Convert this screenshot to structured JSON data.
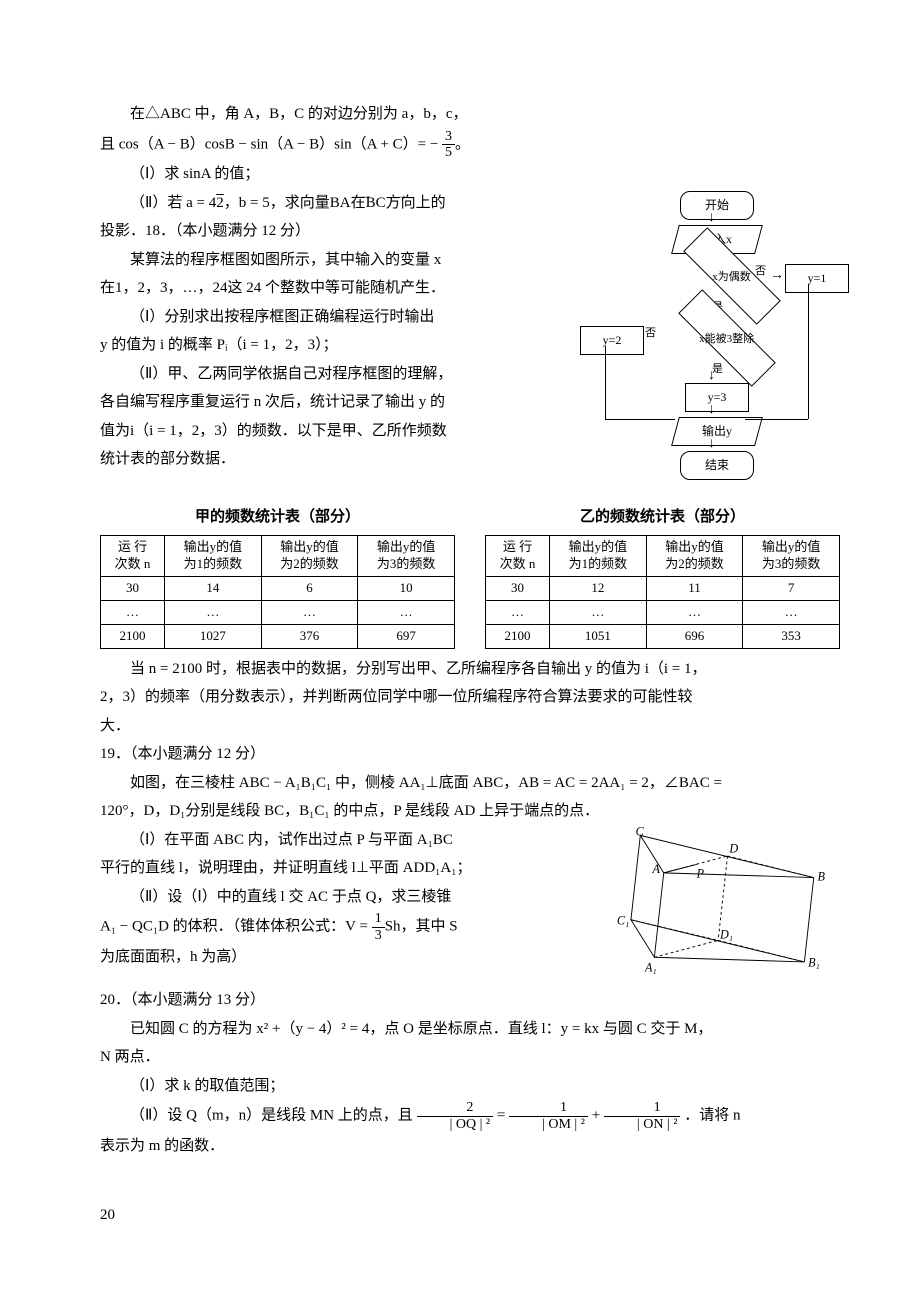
{
  "p17_l1": "在△ABC 中，角 A，B，C 的对边分别为 a，b，c，",
  "p17_l2_a": "且 cos（A − B）cosB − sin（A − B）sin（A + C）= −",
  "p17_frac_num": "3",
  "p17_frac_den": "5",
  "p17_l2_b": "。",
  "p17_q1": "（Ⅰ）求 sinA 的值；",
  "p17_q2_a": "（Ⅱ）若 a = 4",
  "p17_sqrt": "2",
  "p17_q2_b": "，b = 5，求向量",
  "p17_vec1": "BA",
  "p17_q2_c": "在",
  "p17_vec2": "BC",
  "p17_q2_d": "方向上的",
  "p17_q2_e": "投影．18．（本小题满分 12 分）",
  "p18_l1": "某算法的程序框图如图所示，其中输入的变量 x",
  "p18_l2": "在1，2，3，…，24这 24 个整数中等可能随机产生．",
  "p18_q1a": "（Ⅰ）分别求出按程序框图正确编程运行时输出",
  "p18_q1b": "y 的值为 i 的概率 Pᵢ（i = 1，2，3）；",
  "p18_q2a": "（Ⅱ）甲、乙两同学依据自己对程序框图的理解，",
  "p18_q2b": "各自编写程序重复运行 n 次后，统计记录了输出 y 的",
  "p18_q2c": "值为i（i = 1，2，3）的频数．以下是甲、乙所作频数",
  "p18_q2d": "统计表的部分数据．",
  "flowchart": {
    "start": "开始",
    "input": "输入x",
    "dec1": "x为偶数",
    "dec2": "x能被3整除",
    "y1": "y=1",
    "y2": "y=2",
    "y3": "y=3",
    "output": "输出y",
    "end": "结束",
    "yes": "是",
    "no": "否"
  },
  "table_jia_title": "甲的频数统计表（部分）",
  "table_yi_title": "乙的频数统计表（部分）",
  "tbl_headers": [
    "运 行\n次数 n",
    "输出y的值\n为1的频数",
    "输出y的值\n为2的频数",
    "输出y的值\n为3的频数"
  ],
  "jia_rows": [
    [
      "30",
      "14",
      "6",
      "10"
    ],
    [
      "…",
      "…",
      "…",
      "…"
    ],
    [
      "2100",
      "1027",
      "376",
      "697"
    ]
  ],
  "yi_rows": [
    [
      "30",
      "12",
      "11",
      "7"
    ],
    [
      "…",
      "…",
      "…",
      "…"
    ],
    [
      "2100",
      "1051",
      "696",
      "353"
    ]
  ],
  "p18_q2e": "当 n = 2100 时，根据表中的数据，分别写出甲、乙所编程序各自输出 y 的值为 i（i = 1，",
  "p18_q2f": "2，3）的频率（用分数表示），并判断两位同学中哪一位所编程序符合算法要求的可能性较",
  "p18_q2g": "大．",
  "p19_h": "19．（本小题满分 12 分）",
  "p19_l1": "如图，在三棱柱 ABC − A₁B₁C₁ 中，侧棱 AA₁⊥底面 ABC，AB = AC = 2AA₁ = 2，∠BAC =",
  "p19_l2": "120°，D，D₁分别是线段 BC，B₁C₁ 的中点，P 是线段 AD 上异于端点的点．",
  "p19_q1a": "（Ⅰ）在平面 ABC 内，试作出过点 P 与平面 A₁BC",
  "p19_q1b": "平行的直线 l，说明理由，并证明直线 l⊥平面 ADD₁A₁；",
  "p19_q2a": "（Ⅱ）设（Ⅰ）中的直线 l 交 AC 于点 Q，求三棱锥",
  "p19_q2b_a": "A₁ − QC₁D 的体积．（锥体体积公式：V = ",
  "p19_vol_num": "1",
  "p19_vol_den": "3",
  "p19_q2b_b": "Sh，其中 S",
  "p19_q2c": "为底面面积，h 为高）",
  "geom_labels": {
    "C": "C",
    "D": "D",
    "P": "P",
    "A": "A",
    "B": "B",
    "C1": "C₁",
    "D1": "D₁",
    "A1": "A₁",
    "B1": "B₁"
  },
  "p20_h": "20．（本小题满分 13 分）",
  "p20_l1": "已知圆 C 的方程为 x² +（y − 4）² = 4，点 O 是坐标原点．直线 l：y = kx 与圆 C 交于 M，",
  "p20_l2": "N 两点．",
  "p20_q1": "（Ⅰ）求 k 的取值范围；",
  "p20_q2a": "（Ⅱ）设 Q（m，n）是线段 MN 上的点，且",
  "p20_f1n": "2",
  "p20_f1d": "| OQ | ²",
  "p20_eq": " = ",
  "p20_f2n": "1",
  "p20_f2d": "| OM | ²",
  "p20_plus": " + ",
  "p20_f3n": "1",
  "p20_f3d": "| ON | ²",
  "p20_q2b": "．请将 n",
  "p20_q2c": "表示为 m 的函数．",
  "page_num": "20"
}
